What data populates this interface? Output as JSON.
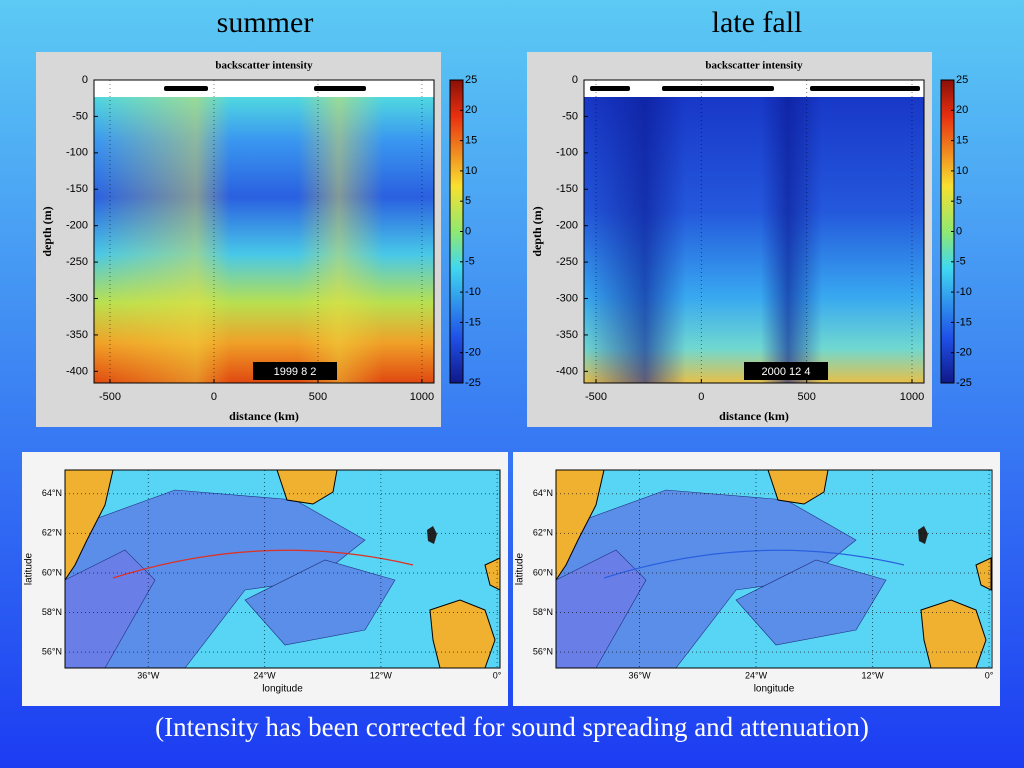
{
  "slide_title": "(Intensity has been corrected for sound spreading and attenuation)",
  "chart_data": [
    {
      "type": "heatmap",
      "heading": "summer",
      "title": "backscatter intensity",
      "xlabel": "distance (km)",
      "ylabel": "depth (m)",
      "date_label": "1999  8  2",
      "xlim": [
        -577,
        1058
      ],
      "xticks": [
        -500,
        0,
        500,
        1000
      ],
      "ylim": [
        -416,
        0
      ],
      "yticks": [
        0,
        -50,
        -100,
        -150,
        -200,
        -250,
        -300,
        -350,
        -400
      ],
      "clim": [
        -25,
        25
      ],
      "cticks": [
        25,
        20,
        15,
        10,
        5,
        0,
        -5,
        -10,
        -15,
        -20,
        -25
      ]
    },
    {
      "type": "heatmap",
      "heading": "late fall",
      "title": "backscatter intensity",
      "xlabel": "distance (km)",
      "ylabel": "depth (m)",
      "date_label": "2000  12  4",
      "xlim": [
        -557,
        1057
      ],
      "xticks": [
        -500,
        0,
        500,
        1000
      ],
      "ylim": [
        -416,
        0
      ],
      "yticks": [
        0,
        -50,
        -100,
        -150,
        -200,
        -250,
        -300,
        -350,
        -400
      ],
      "clim": [
        -25,
        25
      ],
      "cticks": [
        25,
        20,
        15,
        10,
        5,
        0,
        -5,
        -10,
        -15,
        -20,
        -25
      ]
    },
    {
      "type": "map",
      "xlabel": "longitude",
      "ylabel": "latitude",
      "track_color": "#e03020",
      "grid": true,
      "xlim": [
        -44.6,
        0.3
      ],
      "xticks": [
        {
          "value": -36,
          "label": "36°W"
        },
        {
          "value": -24,
          "label": "24°W"
        },
        {
          "value": -12,
          "label": "12°W"
        },
        {
          "value": 0,
          "label": "0°"
        }
      ],
      "ylim": [
        55.2,
        65.2
      ],
      "yticks": [
        {
          "value": 56,
          "label": "56°N"
        },
        {
          "value": 58,
          "label": "58°N"
        },
        {
          "value": 60,
          "label": "60°N"
        },
        {
          "value": 62,
          "label": "62°N"
        },
        {
          "value": 64,
          "label": "64°N"
        }
      ]
    },
    {
      "type": "map",
      "xlabel": "longitude",
      "ylabel": "latitude",
      "track_color": "#2a60e0",
      "grid": true,
      "xlim": [
        -44.6,
        0.3
      ],
      "xticks": [
        {
          "value": -36,
          "label": "36°W"
        },
        {
          "value": -24,
          "label": "24°W"
        },
        {
          "value": -12,
          "label": "12°W"
        },
        {
          "value": 0,
          "label": "0°"
        }
      ],
      "ylim": [
        55.2,
        65.2
      ],
      "yticks": [
        {
          "value": 56,
          "label": "56°N"
        },
        {
          "value": 58,
          "label": "58°N"
        },
        {
          "value": 60,
          "label": "60°N"
        },
        {
          "value": 62,
          "label": "62°N"
        },
        {
          "value": 64,
          "label": "64°N"
        }
      ]
    }
  ]
}
